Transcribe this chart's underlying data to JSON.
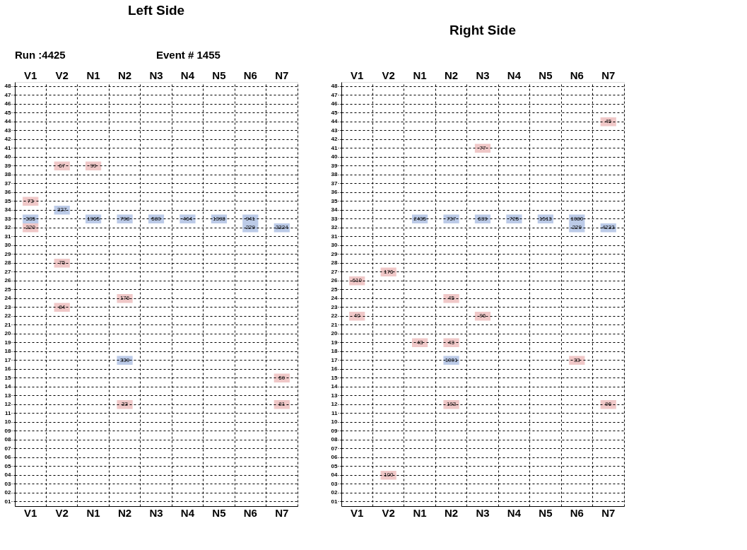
{
  "chart_data": [
    {
      "type": "heatmap",
      "title": "Left Side",
      "annotations": [
        "Run :4425",
        "Event # 1455"
      ],
      "data_labels": true,
      "grid": true,
      "categories": [
        "V1",
        "V2",
        "N1",
        "N2",
        "N3",
        "N4",
        "N5",
        "N6",
        "N7"
      ],
      "y_categories": [
        "48",
        "47",
        "46",
        "45",
        "44",
        "43",
        "42",
        "41",
        "40",
        "39",
        "38",
        "37",
        "36",
        "35",
        "34",
        "33",
        "32",
        "31",
        "30",
        "29",
        "28",
        "27",
        "26",
        "25",
        "24",
        "23",
        "22",
        "21",
        "20",
        "19",
        "18",
        "17",
        "16",
        "15",
        "14",
        "13",
        "12",
        "11",
        "10",
        "09",
        "08",
        "07",
        "06",
        "05",
        "04",
        "03",
        "02",
        "01"
      ],
      "cells": [
        [
          null,
          null,
          null,
          null,
          null,
          null,
          null,
          null,
          null
        ],
        [
          null,
          null,
          null,
          null,
          null,
          null,
          null,
          null,
          null
        ],
        [
          null,
          null,
          null,
          null,
          null,
          null,
          null,
          null,
          null
        ],
        [
          null,
          null,
          null,
          null,
          null,
          null,
          null,
          null,
          null
        ],
        [
          null,
          null,
          null,
          null,
          null,
          null,
          null,
          null,
          null
        ],
        [
          null,
          null,
          null,
          null,
          null,
          null,
          null,
          null,
          null
        ],
        [
          null,
          null,
          null,
          null,
          null,
          null,
          null,
          null,
          null
        ],
        [
          null,
          null,
          null,
          null,
          null,
          null,
          null,
          null,
          null
        ],
        [
          null,
          null,
          null,
          null,
          null,
          null,
          null,
          null,
          null
        ],
        [
          null,
          67,
          99,
          null,
          null,
          null,
          null,
          null,
          null
        ],
        [
          null,
          null,
          null,
          null,
          null,
          null,
          null,
          null,
          null
        ],
        [
          null,
          null,
          null,
          null,
          null,
          null,
          null,
          null,
          null
        ],
        [
          null,
          null,
          null,
          null,
          null,
          null,
          null,
          null,
          null
        ],
        [
          73,
          null,
          null,
          null,
          null,
          null,
          null,
          null,
          null
        ],
        [
          null,
          327,
          null,
          null,
          null,
          null,
          null,
          null,
          null
        ],
        [
          335,
          null,
          1965,
          798,
          580,
          464,
          1398,
          941,
          null
        ],
        [
          220,
          null,
          null,
          null,
          null,
          null,
          null,
          229,
          3324
        ],
        [
          null,
          null,
          null,
          null,
          null,
          null,
          null,
          null,
          null
        ],
        [
          null,
          null,
          null,
          null,
          null,
          null,
          null,
          null,
          null
        ],
        [
          null,
          null,
          null,
          null,
          null,
          null,
          null,
          null,
          null
        ],
        [
          null,
          75,
          null,
          null,
          null,
          null,
          null,
          null,
          null
        ],
        [
          null,
          null,
          null,
          null,
          null,
          null,
          null,
          null,
          null
        ],
        [
          null,
          null,
          null,
          null,
          null,
          null,
          null,
          null,
          null
        ],
        [
          null,
          null,
          null,
          null,
          null,
          null,
          null,
          null,
          null
        ],
        [
          null,
          null,
          null,
          176,
          null,
          null,
          null,
          null,
          null
        ],
        [
          null,
          84,
          null,
          null,
          null,
          null,
          null,
          null,
          null
        ],
        [
          null,
          null,
          null,
          null,
          null,
          null,
          null,
          null,
          null
        ],
        [
          null,
          null,
          null,
          null,
          null,
          null,
          null,
          null,
          null
        ],
        [
          null,
          null,
          null,
          null,
          null,
          null,
          null,
          null,
          null
        ],
        [
          null,
          null,
          null,
          null,
          null,
          null,
          null,
          null,
          null
        ],
        [
          null,
          null,
          null,
          null,
          null,
          null,
          null,
          null,
          null
        ],
        [
          null,
          null,
          null,
          339,
          null,
          null,
          null,
          null,
          null
        ],
        [
          null,
          null,
          null,
          null,
          null,
          null,
          null,
          null,
          null
        ],
        [
          null,
          null,
          null,
          null,
          null,
          null,
          null,
          null,
          50
        ],
        [
          null,
          null,
          null,
          null,
          null,
          null,
          null,
          null,
          null
        ],
        [
          null,
          null,
          null,
          null,
          null,
          null,
          null,
          null,
          null
        ],
        [
          null,
          null,
          null,
          33,
          null,
          null,
          null,
          null,
          81
        ],
        [
          null,
          null,
          null,
          null,
          null,
          null,
          null,
          null,
          null
        ],
        [
          null,
          null,
          null,
          null,
          null,
          null,
          null,
          null,
          null
        ],
        [
          null,
          null,
          null,
          null,
          null,
          null,
          null,
          null,
          null
        ],
        [
          null,
          null,
          null,
          null,
          null,
          null,
          null,
          null,
          null
        ],
        [
          null,
          null,
          null,
          null,
          null,
          null,
          null,
          null,
          null
        ],
        [
          null,
          null,
          null,
          null,
          null,
          null,
          null,
          null,
          null
        ],
        [
          null,
          null,
          null,
          null,
          null,
          null,
          null,
          null,
          null
        ],
        [
          null,
          null,
          null,
          null,
          null,
          null,
          null,
          null,
          null
        ],
        [
          null,
          null,
          null,
          null,
          null,
          null,
          null,
          null,
          null
        ],
        [
          null,
          null,
          null,
          null,
          null,
          null,
          null,
          null,
          null
        ],
        [
          null,
          null,
          null,
          null,
          null,
          null,
          null,
          null,
          null
        ]
      ],
      "colors": [
        [
          null,
          null,
          null,
          null,
          null,
          null,
          null,
          null,
          null
        ],
        [
          null,
          null,
          null,
          null,
          null,
          null,
          null,
          null,
          null
        ],
        [
          null,
          null,
          null,
          null,
          null,
          null,
          null,
          null,
          null
        ],
        [
          null,
          null,
          null,
          null,
          null,
          null,
          null,
          null,
          null
        ],
        [
          null,
          null,
          null,
          null,
          null,
          null,
          null,
          null,
          null
        ],
        [
          null,
          null,
          null,
          null,
          null,
          null,
          null,
          null,
          null
        ],
        [
          null,
          null,
          null,
          null,
          null,
          null,
          null,
          null,
          null
        ],
        [
          null,
          null,
          null,
          null,
          null,
          null,
          null,
          null,
          null
        ],
        [
          null,
          null,
          null,
          null,
          null,
          null,
          null,
          null,
          null
        ],
        [
          null,
          "#f0c8c8",
          "#f0c8c8",
          null,
          null,
          null,
          null,
          null,
          null
        ],
        [
          null,
          null,
          null,
          null,
          null,
          null,
          null,
          null,
          null
        ],
        [
          null,
          null,
          null,
          null,
          null,
          null,
          null,
          null,
          null
        ],
        [
          null,
          null,
          null,
          null,
          null,
          null,
          null,
          null,
          null
        ],
        [
          "#f0c8c8",
          null,
          null,
          null,
          null,
          null,
          null,
          null,
          null
        ],
        [
          null,
          "#bccbe8",
          null,
          null,
          null,
          null,
          null,
          null,
          null
        ],
        [
          "#bccbe8",
          null,
          "#bccbe8",
          "#bccbe8",
          "#bccbe8",
          "#bccbe8",
          "#bccbe8",
          "#bccbe8",
          null
        ],
        [
          "#f0c8c8",
          null,
          null,
          null,
          null,
          null,
          null,
          "#bccbe8",
          "#bccbe8"
        ],
        [
          null,
          null,
          null,
          null,
          null,
          null,
          null,
          null,
          null
        ],
        [
          null,
          null,
          null,
          null,
          null,
          null,
          null,
          null,
          null
        ],
        [
          null,
          null,
          null,
          null,
          null,
          null,
          null,
          null,
          null
        ],
        [
          null,
          "#f0c8c8",
          null,
          null,
          null,
          null,
          null,
          null,
          null
        ],
        [
          null,
          null,
          null,
          null,
          null,
          null,
          null,
          null,
          null
        ],
        [
          null,
          null,
          null,
          null,
          null,
          null,
          null,
          null,
          null
        ],
        [
          null,
          null,
          null,
          null,
          null,
          null,
          null,
          null,
          null
        ],
        [
          null,
          null,
          null,
          "#f0c8c8",
          null,
          null,
          null,
          null,
          null
        ],
        [
          null,
          "#f0c8c8",
          null,
          null,
          null,
          null,
          null,
          null,
          null
        ],
        [
          null,
          null,
          null,
          null,
          null,
          null,
          null,
          null,
          null
        ],
        [
          null,
          null,
          null,
          null,
          null,
          null,
          null,
          null,
          null
        ],
        [
          null,
          null,
          null,
          null,
          null,
          null,
          null,
          null,
          null
        ],
        [
          null,
          null,
          null,
          null,
          null,
          null,
          null,
          null,
          null
        ],
        [
          null,
          null,
          null,
          null,
          null,
          null,
          null,
          null,
          null
        ],
        [
          null,
          null,
          null,
          "#bccbe8",
          null,
          null,
          null,
          null,
          null
        ],
        [
          null,
          null,
          null,
          null,
          null,
          null,
          null,
          null,
          null
        ],
        [
          null,
          null,
          null,
          null,
          null,
          null,
          null,
          null,
          "#f0c8c8"
        ],
        [
          null,
          null,
          null,
          null,
          null,
          null,
          null,
          null,
          null
        ],
        [
          null,
          null,
          null,
          null,
          null,
          null,
          null,
          null,
          null
        ],
        [
          null,
          null,
          null,
          "#f0c8c8",
          null,
          null,
          null,
          null,
          "#f0c8c8"
        ],
        [
          null,
          null,
          null,
          null,
          null,
          null,
          null,
          null,
          null
        ],
        [
          null,
          null,
          null,
          null,
          null,
          null,
          null,
          null,
          null
        ],
        [
          null,
          null,
          null,
          null,
          null,
          null,
          null,
          null,
          null
        ],
        [
          null,
          null,
          null,
          null,
          null,
          null,
          null,
          null,
          null
        ],
        [
          null,
          null,
          null,
          null,
          null,
          null,
          null,
          null,
          null
        ],
        [
          null,
          null,
          null,
          null,
          null,
          null,
          null,
          null,
          null
        ],
        [
          null,
          null,
          null,
          null,
          null,
          null,
          null,
          null,
          null
        ],
        [
          null,
          null,
          null,
          null,
          null,
          null,
          null,
          null,
          null
        ],
        [
          null,
          null,
          null,
          null,
          null,
          null,
          null,
          null,
          null
        ],
        [
          null,
          null,
          null,
          null,
          null,
          null,
          null,
          null,
          null
        ],
        [
          null,
          null,
          null,
          null,
          null,
          null,
          null,
          null,
          null
        ]
      ]
    },
    {
      "type": "heatmap",
      "title": "Right Side",
      "data_labels": true,
      "grid": true,
      "categories": [
        "V1",
        "V2",
        "N1",
        "N2",
        "N3",
        "N4",
        "N5",
        "N6",
        "N7"
      ],
      "y_categories": [
        "48",
        "47",
        "46",
        "45",
        "44",
        "43",
        "42",
        "41",
        "40",
        "39",
        "38",
        "37",
        "36",
        "35",
        "34",
        "33",
        "32",
        "31",
        "30",
        "29",
        "28",
        "27",
        "26",
        "25",
        "24",
        "23",
        "22",
        "21",
        "20",
        "19",
        "18",
        "17",
        "16",
        "15",
        "14",
        "13",
        "12",
        "11",
        "10",
        "09",
        "08",
        "07",
        "06",
        "05",
        "04",
        "03",
        "02",
        "01"
      ],
      "cells": [
        [
          null,
          null,
          null,
          null,
          null,
          null,
          null,
          null,
          null
        ],
        [
          null,
          null,
          null,
          null,
          null,
          null,
          null,
          null,
          null
        ],
        [
          null,
          null,
          null,
          null,
          null,
          null,
          null,
          null,
          null
        ],
        [
          null,
          null,
          null,
          null,
          null,
          null,
          null,
          null,
          null
        ],
        [
          null,
          null,
          null,
          null,
          null,
          null,
          null,
          null,
          45
        ],
        [
          null,
          null,
          null,
          null,
          null,
          null,
          null,
          null,
          null
        ],
        [
          null,
          null,
          null,
          null,
          null,
          null,
          null,
          null,
          null
        ],
        [
          null,
          null,
          null,
          null,
          77,
          null,
          null,
          null,
          null
        ],
        [
          null,
          null,
          null,
          null,
          null,
          null,
          null,
          null,
          null
        ],
        [
          null,
          null,
          null,
          null,
          null,
          null,
          null,
          null,
          null
        ],
        [
          null,
          null,
          null,
          null,
          null,
          null,
          null,
          null,
          null
        ],
        [
          null,
          null,
          null,
          null,
          null,
          null,
          null,
          null,
          null
        ],
        [
          null,
          null,
          null,
          null,
          null,
          null,
          null,
          null,
          null
        ],
        [
          null,
          null,
          null,
          null,
          null,
          null,
          null,
          null,
          null
        ],
        [
          null,
          null,
          null,
          null,
          null,
          null,
          null,
          null,
          null
        ],
        [
          null,
          null,
          2435,
          737,
          639,
          725,
          1513,
          1080,
          null
        ],
        [
          null,
          null,
          null,
          null,
          null,
          null,
          null,
          229,
          4233
        ],
        [
          null,
          null,
          null,
          null,
          null,
          null,
          null,
          null,
          null
        ],
        [
          null,
          null,
          null,
          null,
          null,
          null,
          null,
          null,
          null
        ],
        [
          null,
          null,
          null,
          null,
          null,
          null,
          null,
          null,
          null
        ],
        [
          null,
          null,
          null,
          null,
          null,
          null,
          null,
          null,
          null
        ],
        [
          null,
          176,
          null,
          null,
          null,
          null,
          null,
          null,
          null
        ],
        [
          610,
          null,
          null,
          null,
          null,
          null,
          null,
          null,
          null
        ],
        [
          null,
          null,
          null,
          null,
          null,
          null,
          null,
          null,
          null
        ],
        [
          null,
          null,
          null,
          45,
          null,
          null,
          null,
          null,
          null
        ],
        [
          null,
          null,
          null,
          null,
          null,
          null,
          null,
          null,
          null
        ],
        [
          40,
          null,
          null,
          null,
          96,
          null,
          null,
          null,
          null
        ],
        [
          null,
          null,
          null,
          null,
          null,
          null,
          null,
          null,
          null
        ],
        [
          null,
          null,
          null,
          null,
          null,
          null,
          null,
          null,
          null
        ],
        [
          null,
          null,
          43,
          43,
          null,
          null,
          null,
          null,
          null
        ],
        [
          null,
          null,
          null,
          null,
          null,
          null,
          null,
          null,
          null
        ],
        [
          null,
          null,
          null,
          1001,
          null,
          null,
          null,
          33,
          null
        ],
        [
          null,
          null,
          null,
          null,
          null,
          null,
          null,
          null,
          null
        ],
        [
          null,
          null,
          null,
          null,
          null,
          null,
          null,
          null,
          null
        ],
        [
          null,
          null,
          null,
          null,
          null,
          null,
          null,
          null,
          null
        ],
        [
          null,
          null,
          null,
          null,
          null,
          null,
          null,
          null,
          null
        ],
        [
          null,
          null,
          null,
          193,
          null,
          null,
          null,
          null,
          96
        ],
        [
          null,
          null,
          null,
          null,
          null,
          null,
          null,
          null,
          null
        ],
        [
          null,
          null,
          null,
          null,
          null,
          null,
          null,
          null,
          null
        ],
        [
          null,
          null,
          null,
          null,
          null,
          null,
          null,
          null,
          null
        ],
        [
          null,
          null,
          null,
          null,
          null,
          null,
          null,
          null,
          null
        ],
        [
          null,
          null,
          null,
          null,
          null,
          null,
          null,
          null,
          null
        ],
        [
          null,
          null,
          null,
          null,
          null,
          null,
          null,
          null,
          null
        ],
        [
          null,
          null,
          null,
          null,
          null,
          null,
          null,
          null,
          null
        ],
        [
          null,
          100,
          null,
          null,
          null,
          null,
          null,
          null,
          null
        ],
        [
          null,
          null,
          null,
          null,
          null,
          null,
          null,
          null,
          null
        ],
        [
          null,
          null,
          null,
          null,
          null,
          null,
          null,
          null,
          null
        ],
        [
          null,
          null,
          null,
          null,
          null,
          null,
          null,
          null,
          null
        ]
      ],
      "colors": [
        [
          null,
          null,
          null,
          null,
          null,
          null,
          null,
          null,
          null
        ],
        [
          null,
          null,
          null,
          null,
          null,
          null,
          null,
          null,
          null
        ],
        [
          null,
          null,
          null,
          null,
          null,
          null,
          null,
          null,
          null
        ],
        [
          null,
          null,
          null,
          null,
          null,
          null,
          null,
          null,
          null
        ],
        [
          null,
          null,
          null,
          null,
          null,
          null,
          null,
          null,
          "#f0c8c8"
        ],
        [
          null,
          null,
          null,
          null,
          null,
          null,
          null,
          null,
          null
        ],
        [
          null,
          null,
          null,
          null,
          null,
          null,
          null,
          null,
          null
        ],
        [
          null,
          null,
          null,
          null,
          "#f0c8c8",
          null,
          null,
          null,
          null
        ],
        [
          null,
          null,
          null,
          null,
          null,
          null,
          null,
          null,
          null
        ],
        [
          null,
          null,
          null,
          null,
          null,
          null,
          null,
          null,
          null
        ],
        [
          null,
          null,
          null,
          null,
          null,
          null,
          null,
          null,
          null
        ],
        [
          null,
          null,
          null,
          null,
          null,
          null,
          null,
          null,
          null
        ],
        [
          null,
          null,
          null,
          null,
          null,
          null,
          null,
          null,
          null
        ],
        [
          null,
          null,
          null,
          null,
          null,
          null,
          null,
          null,
          null
        ],
        [
          null,
          null,
          null,
          null,
          null,
          null,
          null,
          null,
          null
        ],
        [
          null,
          null,
          "#bccbe8",
          "#bccbe8",
          "#bccbe8",
          "#bccbe8",
          "#bccbe8",
          "#bccbe8",
          null
        ],
        [
          null,
          null,
          null,
          null,
          null,
          null,
          null,
          "#bccbe8",
          "#bccbe8"
        ],
        [
          null,
          null,
          null,
          null,
          null,
          null,
          null,
          null,
          null
        ],
        [
          null,
          null,
          null,
          null,
          null,
          null,
          null,
          null,
          null
        ],
        [
          null,
          null,
          null,
          null,
          null,
          null,
          null,
          null,
          null
        ],
        [
          null,
          null,
          null,
          null,
          null,
          null,
          null,
          null,
          null
        ],
        [
          null,
          "#f0c8c8",
          null,
          null,
          null,
          null,
          null,
          null,
          null
        ],
        [
          "#f0c8c8",
          null,
          null,
          null,
          null,
          null,
          null,
          null,
          null
        ],
        [
          null,
          null,
          null,
          null,
          null,
          null,
          null,
          null,
          null
        ],
        [
          null,
          null,
          null,
          "#f0c8c8",
          null,
          null,
          null,
          null,
          null
        ],
        [
          null,
          null,
          null,
          null,
          null,
          null,
          null,
          null,
          null
        ],
        [
          "#f0c8c8",
          null,
          null,
          null,
          "#f0c8c8",
          null,
          null,
          null,
          null
        ],
        [
          null,
          null,
          null,
          null,
          null,
          null,
          null,
          null,
          null
        ],
        [
          null,
          null,
          null,
          null,
          null,
          null,
          null,
          null,
          null
        ],
        [
          null,
          null,
          "#f0c8c8",
          "#f0c8c8",
          null,
          null,
          null,
          null,
          null
        ],
        [
          null,
          null,
          null,
          null,
          null,
          null,
          null,
          null,
          null
        ],
        [
          null,
          null,
          null,
          "#bccbe8",
          null,
          null,
          null,
          "#f0c8c8",
          null
        ],
        [
          null,
          null,
          null,
          null,
          null,
          null,
          null,
          null,
          null
        ],
        [
          null,
          null,
          null,
          null,
          null,
          null,
          null,
          null,
          null
        ],
        [
          null,
          null,
          null,
          null,
          null,
          null,
          null,
          null,
          null
        ],
        [
          null,
          null,
          null,
          null,
          null,
          null,
          null,
          null,
          null
        ],
        [
          null,
          null,
          null,
          "#f0c8c8",
          null,
          null,
          null,
          null,
          "#f0c8c8"
        ],
        [
          null,
          null,
          null,
          null,
          null,
          null,
          null,
          null,
          null
        ],
        [
          null,
          null,
          null,
          null,
          null,
          null,
          null,
          null,
          null
        ],
        [
          null,
          null,
          null,
          null,
          null,
          null,
          null,
          null,
          null
        ],
        [
          null,
          null,
          null,
          null,
          null,
          null,
          null,
          null,
          null
        ],
        [
          null,
          null,
          null,
          null,
          null,
          null,
          null,
          null,
          null
        ],
        [
          null,
          null,
          null,
          null,
          null,
          null,
          null,
          null,
          null
        ],
        [
          null,
          null,
          null,
          null,
          null,
          null,
          null,
          null,
          null
        ],
        [
          null,
          "#f0c8c8",
          null,
          null,
          null,
          null,
          null,
          null,
          null
        ],
        [
          null,
          null,
          null,
          null,
          null,
          null,
          null,
          null,
          null
        ],
        [
          null,
          null,
          null,
          null,
          null,
          null,
          null,
          null,
          null
        ],
        [
          null,
          null,
          null,
          null,
          null,
          null,
          null,
          null,
          null
        ]
      ]
    }
  ]
}
